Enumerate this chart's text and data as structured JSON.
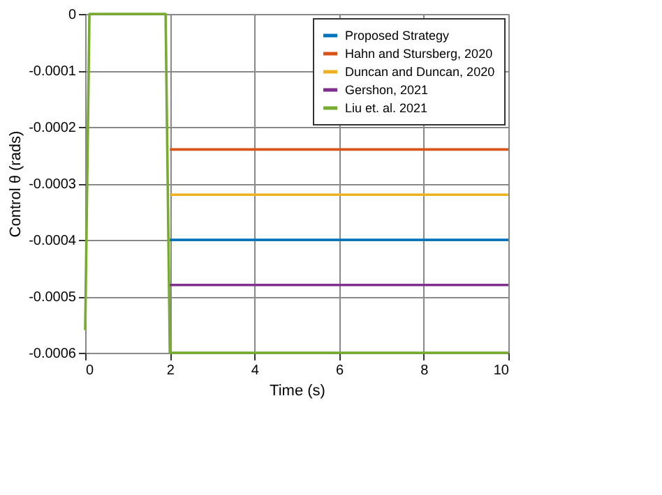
{
  "chart_data": {
    "type": "line",
    "xlabel": "Time (s)",
    "ylabel": "Control   θ  (rads)",
    "xlim": [
      0,
      10
    ],
    "xticks": [
      0,
      2,
      4,
      6,
      8,
      10
    ],
    "ylim": [
      -0.0006,
      0
    ],
    "yticks": [
      -0.0006,
      -0.0005,
      -0.0004,
      -0.0003,
      -0.0002,
      -0.0001,
      0
    ],
    "grid": true,
    "legend": "top right",
    "line_style": "solid",
    "marker": "none",
    "x": [
      0,
      0.1,
      1.9,
      2.0,
      10
    ],
    "series": [
      {
        "name": "Proposed Strategy",
        "color": "#0072bd",
        "values": [
          null,
          null,
          null,
          -0.0004,
          -0.0004
        ]
      },
      {
        "name": "Hahn and Stursberg, 2020",
        "color": "#d95319",
        "values": [
          null,
          null,
          null,
          -0.00024,
          -0.00024
        ]
      },
      {
        "name": "Duncan and Duncan, 2020",
        "color": "#edb120",
        "values": [
          null,
          null,
          null,
          -0.00032,
          -0.00032
        ]
      },
      {
        "name": "Gershon, 2021",
        "color": "#7e2f8e",
        "values": [
          null,
          null,
          null,
          -0.00048,
          -0.00048
        ]
      },
      {
        "name": "Liu et. al. 2021",
        "color": "#77ac30",
        "values": [
          -0.00056,
          0,
          0,
          -0.0006,
          -0.0006
        ]
      }
    ]
  }
}
